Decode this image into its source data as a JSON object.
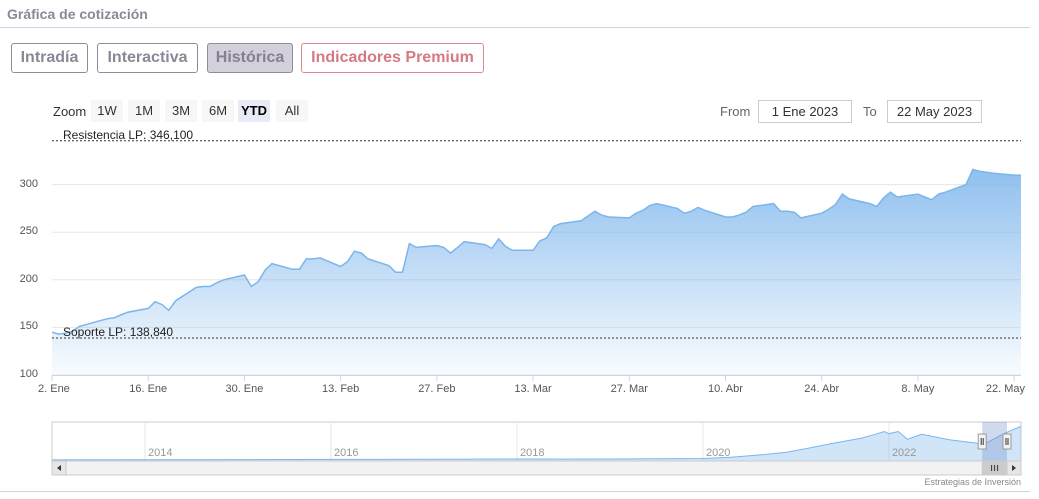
{
  "header": {
    "title": "Gráfica de cotización"
  },
  "tabs": [
    {
      "label": "Intradía",
      "active": false
    },
    {
      "label": "Interactiva",
      "active": false
    },
    {
      "label": "Histórica",
      "active": true
    },
    {
      "label": "Indicadores Premium",
      "active": false,
      "color": "#d57a84"
    }
  ],
  "zoom": {
    "label": "Zoom",
    "buttons": [
      "1W",
      "1M",
      "3M",
      "6M",
      "YTD",
      "All"
    ],
    "selected": "YTD"
  },
  "range": {
    "from_label": "From",
    "from_value": "1 Ene 2023",
    "to_label": "To",
    "to_value": "22 May 2023"
  },
  "credit": "Estrategias de Inversión",
  "chart_data": {
    "type": "area",
    "series_color": "#7cb5ec",
    "ylim": [
      100,
      350
    ],
    "yticks": [
      {
        "value": 100,
        "label": "100"
      },
      {
        "value": 150,
        "label": "150"
      },
      {
        "value": 200,
        "label": "200"
      },
      {
        "value": 250,
        "label": "250"
      },
      {
        "value": 300,
        "label": "300"
      }
    ],
    "xlim": [
      "2023-01-02",
      "2023-05-23"
    ],
    "xticks": [
      {
        "date": "2023-01-02",
        "label": "2. Ene"
      },
      {
        "date": "2023-01-16",
        "label": "16. Ene"
      },
      {
        "date": "2023-01-30",
        "label": "30. Ene"
      },
      {
        "date": "2023-02-13",
        "label": "13. Feb"
      },
      {
        "date": "2023-02-27",
        "label": "27. Feb"
      },
      {
        "date": "2023-03-13",
        "label": "13. Mar"
      },
      {
        "date": "2023-03-27",
        "label": "27. Mar"
      },
      {
        "date": "2023-04-10",
        "label": "10. Abr"
      },
      {
        "date": "2023-04-24",
        "label": "24. Abr"
      },
      {
        "date": "2023-05-08",
        "label": "8. May"
      },
      {
        "date": "2023-05-22",
        "label": "22. May"
      }
    ],
    "plot_lines": [
      {
        "value": 346.1,
        "label": "Resistencia LP: 346,100"
      },
      {
        "value": 138.84,
        "label": "Soporte LP: 138,840"
      }
    ],
    "series": [
      {
        "points": [
          [
            "2023-01-02",
            145
          ],
          [
            "2023-01-03",
            143
          ],
          [
            "2023-01-04",
            144
          ],
          [
            "2023-01-05",
            146
          ],
          [
            "2023-01-06",
            151
          ],
          [
            "2023-01-09",
            157
          ],
          [
            "2023-01-10",
            159
          ],
          [
            "2023-01-11",
            160
          ],
          [
            "2023-01-12",
            163
          ],
          [
            "2023-01-13",
            166
          ],
          [
            "2023-01-16",
            170
          ],
          [
            "2023-01-17",
            177
          ],
          [
            "2023-01-18",
            174
          ],
          [
            "2023-01-19",
            168
          ],
          [
            "2023-01-20",
            178
          ],
          [
            "2023-01-23",
            192
          ],
          [
            "2023-01-24",
            193
          ],
          [
            "2023-01-25",
            193
          ],
          [
            "2023-01-26",
            197
          ],
          [
            "2023-01-27",
            200
          ],
          [
            "2023-01-30",
            205
          ],
          [
            "2023-01-31",
            193
          ],
          [
            "2023-02-01",
            198
          ],
          [
            "2023-02-02",
            210
          ],
          [
            "2023-02-03",
            217
          ],
          [
            "2023-02-06",
            211
          ],
          [
            "2023-02-07",
            211
          ],
          [
            "2023-02-08",
            222
          ],
          [
            "2023-02-09",
            222
          ],
          [
            "2023-02-10",
            223
          ],
          [
            "2023-02-13",
            214
          ],
          [
            "2023-02-14",
            219
          ],
          [
            "2023-02-15",
            230
          ],
          [
            "2023-02-16",
            228
          ],
          [
            "2023-02-17",
            222
          ],
          [
            "2023-02-20",
            215
          ],
          [
            "2023-02-21",
            208
          ],
          [
            "2023-02-22",
            208
          ],
          [
            "2023-02-23",
            238
          ],
          [
            "2023-02-24",
            234
          ],
          [
            "2023-02-27",
            236
          ],
          [
            "2023-02-28",
            234
          ],
          [
            "2023-03-01",
            228
          ],
          [
            "2023-03-02",
            234
          ],
          [
            "2023-03-03",
            240
          ],
          [
            "2023-03-06",
            237
          ],
          [
            "2023-03-07",
            233
          ],
          [
            "2023-03-08",
            243
          ],
          [
            "2023-03-09",
            235
          ],
          [
            "2023-03-10",
            231
          ],
          [
            "2023-03-13",
            231
          ],
          [
            "2023-03-14",
            241
          ],
          [
            "2023-03-15",
            244
          ],
          [
            "2023-03-16",
            256
          ],
          [
            "2023-03-17",
            259
          ],
          [
            "2023-03-20",
            262
          ],
          [
            "2023-03-21",
            267
          ],
          [
            "2023-03-22",
            272
          ],
          [
            "2023-03-23",
            268
          ],
          [
            "2023-03-24",
            266
          ],
          [
            "2023-03-27",
            265
          ],
          [
            "2023-03-28",
            270
          ],
          [
            "2023-03-29",
            273
          ],
          [
            "2023-03-30",
            278
          ],
          [
            "2023-03-31",
            280
          ],
          [
            "2023-04-03",
            275
          ],
          [
            "2023-04-04",
            270
          ],
          [
            "2023-04-05",
            272
          ],
          [
            "2023-04-06",
            276
          ],
          [
            "2023-04-07",
            273
          ],
          [
            "2023-04-10",
            266
          ],
          [
            "2023-04-11",
            266
          ],
          [
            "2023-04-12",
            268
          ],
          [
            "2023-04-13",
            271
          ],
          [
            "2023-04-14",
            277
          ],
          [
            "2023-04-17",
            280
          ],
          [
            "2023-04-18",
            272
          ],
          [
            "2023-04-19",
            272
          ],
          [
            "2023-04-20",
            271
          ],
          [
            "2023-04-21",
            265
          ],
          [
            "2023-04-24",
            270
          ],
          [
            "2023-04-25",
            274
          ],
          [
            "2023-04-26",
            279
          ],
          [
            "2023-04-27",
            290
          ],
          [
            "2023-04-28",
            285
          ],
          [
            "2023-05-01",
            280
          ],
          [
            "2023-05-02",
            277
          ],
          [
            "2023-05-03",
            286
          ],
          [
            "2023-05-04",
            292
          ],
          [
            "2023-05-05",
            287
          ],
          [
            "2023-05-08",
            290
          ],
          [
            "2023-05-09",
            287
          ],
          [
            "2023-05-10",
            284
          ],
          [
            "2023-05-11",
            290
          ],
          [
            "2023-05-12",
            292
          ],
          [
            "2023-05-15",
            300
          ],
          [
            "2023-05-16",
            316
          ],
          [
            "2023-05-17",
            314
          ],
          [
            "2023-05-18",
            313
          ],
          [
            "2023-05-19",
            312
          ],
          [
            "2023-05-22",
            310
          ],
          [
            "2023-05-23",
            310
          ]
        ]
      }
    ],
    "navigator": {
      "labels": [
        {
          "year": 2014,
          "label": "2014"
        },
        {
          "year": 2016,
          "label": "2016"
        },
        {
          "year": 2018,
          "label": "2018"
        },
        {
          "year": 2020,
          "label": "2020"
        },
        {
          "year": 2022,
          "label": "2022"
        }
      ],
      "xlim": [
        2013,
        2023.42
      ],
      "selected_range": [
        "2023-01-01",
        "2023-05-23"
      ],
      "ylim": [
        0,
        350
      ],
      "points": [
        [
          2013.0,
          10
        ],
        [
          2014.0,
          12
        ],
        [
          2015.0,
          13
        ],
        [
          2016.0,
          14
        ],
        [
          2017.0,
          15
        ],
        [
          2017.5,
          17
        ],
        [
          2018.0,
          18
        ],
        [
          2018.5,
          17
        ],
        [
          2019.0,
          18
        ],
        [
          2019.5,
          20
        ],
        [
          2020.0,
          22
        ],
        [
          2020.3,
          34
        ],
        [
          2020.6,
          54
        ],
        [
          2020.9,
          78
        ],
        [
          2021.1,
          110
        ],
        [
          2021.4,
          160
        ],
        [
          2021.7,
          205
        ],
        [
          2021.85,
          240
        ],
        [
          2021.95,
          265
        ],
        [
          2022.0,
          245
        ],
        [
          2022.1,
          265
        ],
        [
          2022.2,
          195
        ],
        [
          2022.35,
          240
        ],
        [
          2022.5,
          215
        ],
        [
          2022.65,
          190
        ],
        [
          2022.8,
          175
        ],
        [
          2022.95,
          160
        ],
        [
          2023.0,
          145
        ],
        [
          2023.1,
          185
        ],
        [
          2023.2,
          230
        ],
        [
          2023.3,
          270
        ],
        [
          2023.42,
          310
        ]
      ]
    }
  }
}
